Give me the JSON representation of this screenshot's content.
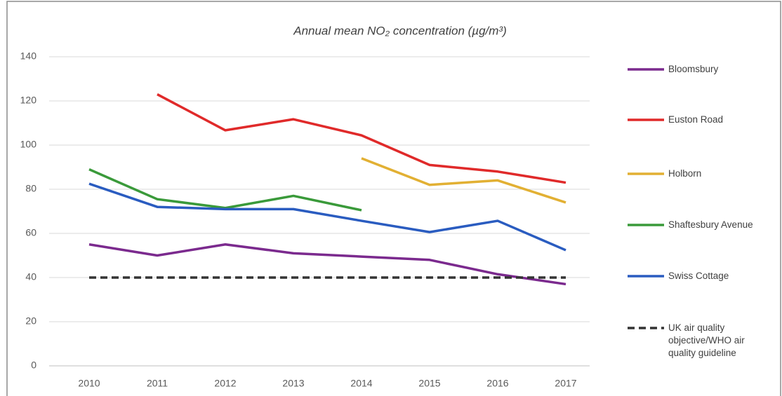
{
  "chart_data": {
    "type": "line",
    "title": "Annual mean NO₂ concentration (µg/m³)",
    "categories": [
      "2010",
      "2011",
      "2012",
      "2013",
      "2014",
      "2015",
      "2016",
      "2017"
    ],
    "ylim": [
      0,
      140
    ],
    "yticks": [
      0,
      20,
      40,
      60,
      80,
      100,
      120,
      140
    ],
    "grid": true,
    "legend": "right",
    "series": [
      {
        "name": "Bloomsbury",
        "color": "#7b2a8e",
        "values": [
          55,
          50,
          55,
          51,
          49.5,
          48,
          41.5,
          37
        ]
      },
      {
        "name": "Euston Road",
        "color": "#e02a2a",
        "values": [
          null,
          123,
          106.7,
          111.7,
          104.4,
          91,
          88,
          83
        ]
      },
      {
        "name": "Holborn",
        "color": "#e2b033",
        "values": [
          null,
          null,
          null,
          null,
          94,
          82,
          84,
          74
        ]
      },
      {
        "name": "Shaftesbury Avenue",
        "color": "#3a9a3a",
        "values": [
          89,
          75.5,
          71.5,
          77,
          70.5,
          null,
          null,
          null
        ]
      },
      {
        "name": "Swiss Cottage",
        "color": "#2a5cc0",
        "values": [
          82.5,
          72,
          71,
          71,
          65.7,
          60.6,
          65.7,
          52.4
        ]
      },
      {
        "name": "UK air quality objective/WHO air quality guideline",
        "color": "#333333",
        "dashed": true,
        "values": [
          40,
          40,
          40,
          40,
          40,
          40,
          40,
          40
        ]
      }
    ]
  }
}
